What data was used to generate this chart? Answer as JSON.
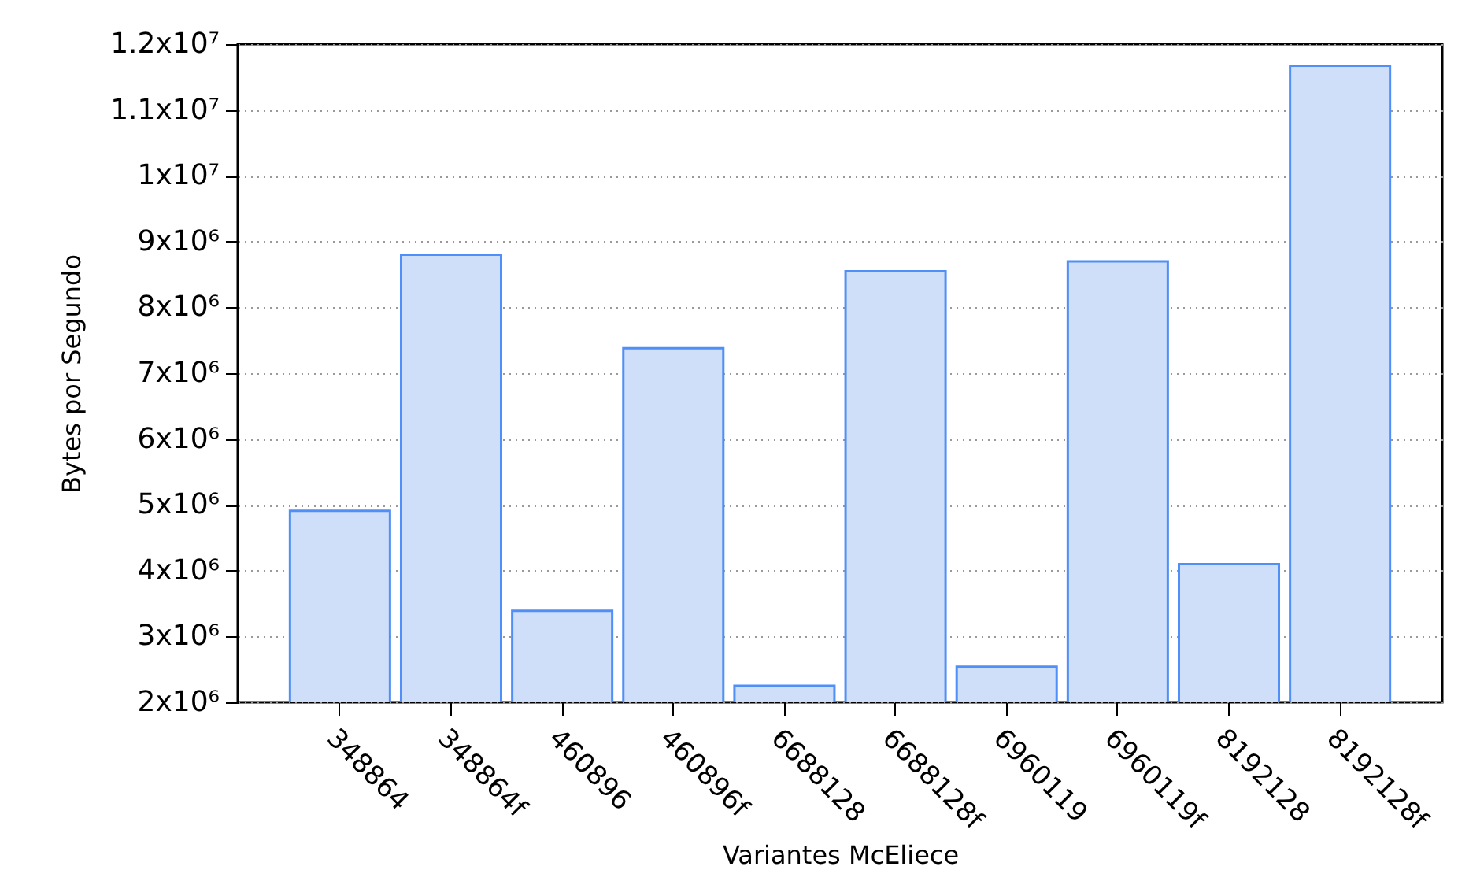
{
  "chart_data": {
    "type": "bar",
    "xlabel": "Variantes McEliece",
    "ylabel": "Bytes por Segundo",
    "categories": [
      "348864",
      "348864f",
      "460896",
      "460896f",
      "6688128",
      "6688128f",
      "6960119",
      "6960119f",
      "8192128",
      "8192128f"
    ],
    "values": [
      4910000,
      8800000,
      3390000,
      7380000,
      2250000,
      8550000,
      2540000,
      8700000,
      4100000,
      11670000
    ],
    "color": "#cfdef9",
    "ylim": [
      2000000,
      12000000
    ],
    "yticks": [
      {
        "value": 2000000,
        "label": "2x10⁶"
      },
      {
        "value": 3000000,
        "label": "3x10⁶"
      },
      {
        "value": 4000000,
        "label": "4x10⁶"
      },
      {
        "value": 5000000,
        "label": "5x10⁶"
      },
      {
        "value": 6000000,
        "label": "6x10⁶"
      },
      {
        "value": 7000000,
        "label": "7x10⁶"
      },
      {
        "value": 8000000,
        "label": "8x10⁶"
      },
      {
        "value": 9000000,
        "label": "9x10⁶"
      },
      {
        "value": 10000000,
        "label": "1x10⁷"
      },
      {
        "value": 11000000,
        "label": "1.1x10⁷"
      },
      {
        "value": 12000000,
        "label": "1.2x10⁷"
      }
    ],
    "grid": "y"
  }
}
